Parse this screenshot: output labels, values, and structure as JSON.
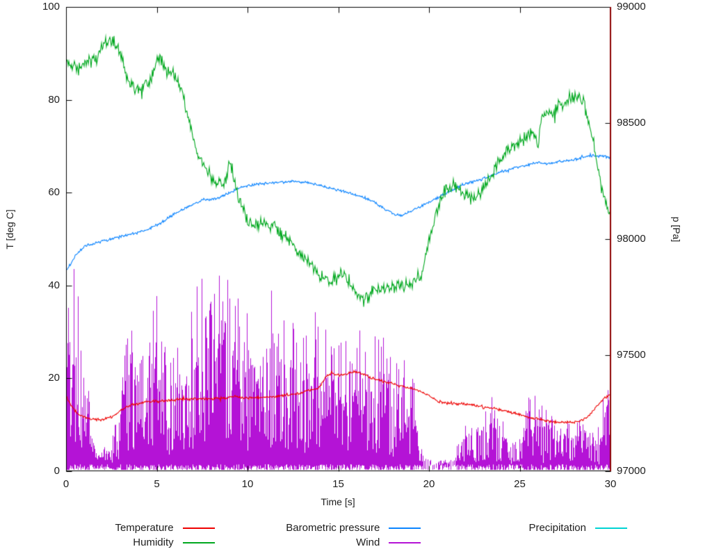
{
  "figure": {
    "background": "#ffffff",
    "border_color": "#000000",
    "right_border_color": "#8b0000",
    "text_color": "#202020"
  },
  "chart_data": {
    "type": "line",
    "title": "",
    "xlabel": "Time [s]",
    "ylabel_left": "T [deg C]",
    "ylabel_right": "p [Pa]",
    "x_range": [
      0,
      30
    ],
    "y_left_range": [
      0,
      100
    ],
    "y_right_range": [
      97000,
      99000
    ],
    "x_ticks": [
      0,
      5,
      10,
      15,
      20,
      25,
      30
    ],
    "y_left_ticks": [
      0,
      20,
      40,
      60,
      80,
      100
    ],
    "y_right_ticks": [
      97000,
      97500,
      98000,
      98500,
      99000
    ],
    "grid": false,
    "legend_position": "bottom",
    "series": [
      {
        "name": "Temperature",
        "color": "#ee0000",
        "axis": "left",
        "style": "noisy-line",
        "noise": 0.35,
        "points": [
          [
            0,
            16.2
          ],
          [
            0.3,
            14
          ],
          [
            0.7,
            12.2
          ],
          [
            1,
            11.6
          ],
          [
            1.5,
            11.2
          ],
          [
            2,
            11.1
          ],
          [
            2.5,
            11.6
          ],
          [
            3,
            13
          ],
          [
            3.5,
            14.2
          ],
          [
            4,
            14.6
          ],
          [
            4.5,
            15
          ],
          [
            5,
            15.1
          ],
          [
            5.5,
            15.1
          ],
          [
            6,
            15.4
          ],
          [
            6.5,
            15.5
          ],
          [
            7,
            15.5
          ],
          [
            7.5,
            15.6
          ],
          [
            8,
            15.6
          ],
          [
            8.5,
            15.7
          ],
          [
            9,
            16
          ],
          [
            9.5,
            16
          ],
          [
            10,
            15.6
          ],
          [
            10.5,
            15.9
          ],
          [
            11,
            16
          ],
          [
            11.5,
            16.1
          ],
          [
            12,
            16.4
          ],
          [
            12.5,
            16.5
          ],
          [
            13,
            17
          ],
          [
            13.5,
            17.5
          ],
          [
            14,
            18.2
          ],
          [
            14.3,
            20.4
          ],
          [
            14.6,
            21
          ],
          [
            15,
            20.6
          ],
          [
            15.5,
            21
          ],
          [
            16,
            21.4
          ],
          [
            16.4,
            21
          ],
          [
            16.8,
            20.2
          ],
          [
            17.2,
            19.6
          ],
          [
            17.6,
            19.2
          ],
          [
            18,
            18.8
          ],
          [
            18.5,
            18.3
          ],
          [
            19,
            17.8
          ],
          [
            19.5,
            17.3
          ],
          [
            20,
            16.2
          ],
          [
            20.5,
            15.1
          ],
          [
            21,
            14.6
          ],
          [
            21.5,
            14.5
          ],
          [
            22,
            14.5
          ],
          [
            22.5,
            14.2
          ],
          [
            23,
            13.7
          ],
          [
            23.5,
            13.6
          ],
          [
            24,
            13.2
          ],
          [
            24.5,
            12.7
          ],
          [
            25,
            12.2
          ],
          [
            25.5,
            11.6
          ],
          [
            26,
            11.2
          ],
          [
            26.5,
            10.8
          ],
          [
            27,
            10.6
          ],
          [
            27.5,
            10.5
          ],
          [
            28,
            10.6
          ],
          [
            28.5,
            11
          ],
          [
            29,
            12.8
          ],
          [
            29.5,
            15.2
          ],
          [
            30,
            16.6
          ]
        ]
      },
      {
        "name": "Humidity",
        "color": "#00a81e",
        "axis": "left",
        "style": "noisy-line",
        "noise": 1.7,
        "points": [
          [
            0,
            88
          ],
          [
            0.4,
            87.2
          ],
          [
            0.8,
            87.6
          ],
          [
            1.2,
            88.2
          ],
          [
            1.6,
            88.5
          ],
          [
            2,
            91.5
          ],
          [
            2.3,
            93
          ],
          [
            2.6,
            92.5
          ],
          [
            3,
            89.5
          ],
          [
            3.4,
            84.5
          ],
          [
            3.8,
            82
          ],
          [
            4.2,
            82.5
          ],
          [
            4.6,
            84
          ],
          [
            5,
            88.5
          ],
          [
            5.3,
            88
          ],
          [
            5.6,
            86.5
          ],
          [
            6,
            85
          ],
          [
            6.4,
            82
          ],
          [
            6.8,
            75
          ],
          [
            7.2,
            68.5
          ],
          [
            7.6,
            65.5
          ],
          [
            8,
            63.5
          ],
          [
            8.4,
            62
          ],
          [
            8.8,
            62.5
          ],
          [
            9,
            66.5
          ],
          [
            9.2,
            64
          ],
          [
            9.5,
            58.5
          ],
          [
            10,
            54
          ],
          [
            10.4,
            53
          ],
          [
            10.8,
            53.5
          ],
          [
            11.2,
            52.5
          ],
          [
            11.6,
            52
          ],
          [
            12,
            50.5
          ],
          [
            12.4,
            49.5
          ],
          [
            12.8,
            47
          ],
          [
            13.2,
            45.5
          ],
          [
            13.6,
            44
          ],
          [
            14,
            42
          ],
          [
            14.4,
            41
          ],
          [
            14.8,
            42
          ],
          [
            15.2,
            43
          ],
          [
            15.6,
            41
          ],
          [
            16,
            38
          ],
          [
            16.4,
            37
          ],
          [
            16.8,
            38.5
          ],
          [
            17.2,
            39.5
          ],
          [
            17.6,
            39
          ],
          [
            18,
            39.5
          ],
          [
            18.4,
            40
          ],
          [
            18.8,
            40
          ],
          [
            19.2,
            41
          ],
          [
            19.6,
            42.5
          ],
          [
            20,
            50
          ],
          [
            20.4,
            56
          ],
          [
            20.8,
            60
          ],
          [
            21.2,
            61.5
          ],
          [
            21.6,
            61
          ],
          [
            22,
            59.5
          ],
          [
            22.4,
            58.5
          ],
          [
            22.8,
            60
          ],
          [
            23.2,
            62.5
          ],
          [
            23.6,
            64.5
          ],
          [
            24,
            67.5
          ],
          [
            24.4,
            69.5
          ],
          [
            24.8,
            70.5
          ],
          [
            25.2,
            71.5
          ],
          [
            25.6,
            73
          ],
          [
            26,
            70.5
          ],
          [
            26.2,
            76
          ],
          [
            26.6,
            77
          ],
          [
            27,
            78
          ],
          [
            27.4,
            79.5
          ],
          [
            27.8,
            80.5
          ],
          [
            28.2,
            81
          ],
          [
            28.5,
            79.5
          ],
          [
            28.8,
            75
          ],
          [
            29.1,
            70
          ],
          [
            29.4,
            63
          ],
          [
            29.7,
            58
          ],
          [
            30,
            55.5
          ]
        ]
      },
      {
        "name": "Barometric pressure",
        "color": "#0a84ff",
        "axis": "right",
        "style": "noisy-line",
        "noise": 7,
        "points": [
          [
            0,
            97860
          ],
          [
            0.5,
            97925
          ],
          [
            1,
            97970
          ],
          [
            1.5,
            97980
          ],
          [
            2,
            97990
          ],
          [
            2.5,
            98000
          ],
          [
            3,
            98010
          ],
          [
            3.5,
            98020
          ],
          [
            4,
            98030
          ],
          [
            4.5,
            98040
          ],
          [
            5,
            98060
          ],
          [
            5.5,
            98085
          ],
          [
            6,
            98110
          ],
          [
            6.5,
            98130
          ],
          [
            7,
            98150
          ],
          [
            7.5,
            98168
          ],
          [
            8,
            98170
          ],
          [
            8.5,
            98180
          ],
          [
            9,
            98200
          ],
          [
            9.5,
            98218
          ],
          [
            10,
            98230
          ],
          [
            10.5,
            98238
          ],
          [
            11,
            98240
          ],
          [
            12,
            98244
          ],
          [
            12.5,
            98250
          ],
          [
            13,
            98245
          ],
          [
            13.5,
            98240
          ],
          [
            14,
            98232
          ],
          [
            15,
            98210
          ],
          [
            16,
            98190
          ],
          [
            17,
            98160
          ],
          [
            17.5,
            98132
          ],
          [
            18,
            98110
          ],
          [
            18.4,
            98100
          ],
          [
            19,
            98118
          ],
          [
            20,
            98160
          ],
          [
            21,
            98200
          ],
          [
            22,
            98238
          ],
          [
            23,
            98260
          ],
          [
            24,
            98290
          ],
          [
            25,
            98312
          ],
          [
            26,
            98330
          ],
          [
            26.5,
            98322
          ],
          [
            27,
            98332
          ],
          [
            28,
            98342
          ],
          [
            29,
            98360
          ],
          [
            29.5,
            98360
          ],
          [
            30,
            98350
          ]
        ]
      },
      {
        "name": "Wind",
        "color": "#b413d6",
        "axis": "left",
        "style": "impulses",
        "baseline": 0.3,
        "envelope": [
          [
            0,
            32
          ],
          [
            0.3,
            48
          ],
          [
            0.6,
            40
          ],
          [
            1,
            30
          ],
          [
            1.3,
            14
          ],
          [
            1.7,
            8
          ],
          [
            2.1,
            7
          ],
          [
            2.5,
            8
          ],
          [
            2.8,
            12
          ],
          [
            3.2,
            26
          ],
          [
            3.6,
            35
          ],
          [
            4,
            30
          ],
          [
            4.4,
            26
          ],
          [
            4.8,
            45
          ],
          [
            5.2,
            32
          ],
          [
            5.6,
            28
          ],
          [
            6,
            30
          ],
          [
            6.5,
            32
          ],
          [
            7,
            38
          ],
          [
            7.5,
            44
          ],
          [
            8,
            40
          ],
          [
            8.5,
            48
          ],
          [
            9,
            46
          ],
          [
            9.5,
            38
          ],
          [
            10,
            36
          ],
          [
            10.5,
            43
          ],
          [
            11,
            38
          ],
          [
            11.5,
            41
          ],
          [
            12,
            37
          ],
          [
            12.5,
            34
          ],
          [
            13,
            31
          ],
          [
            13.5,
            37
          ],
          [
            14,
            33
          ],
          [
            14.5,
            31
          ],
          [
            15,
            29
          ],
          [
            15.5,
            31
          ],
          [
            16,
            35
          ],
          [
            16.5,
            31
          ],
          [
            17,
            29
          ],
          [
            17.5,
            31
          ],
          [
            18,
            26
          ],
          [
            18.5,
            29
          ],
          [
            19,
            23
          ],
          [
            19.4,
            15
          ],
          [
            19.8,
            4
          ],
          [
            20.3,
            2
          ],
          [
            20.8,
            2.5
          ],
          [
            21.3,
            4
          ],
          [
            21.8,
            10
          ],
          [
            22.3,
            16
          ],
          [
            22.8,
            13
          ],
          [
            23.3,
            18
          ],
          [
            23.8,
            12
          ],
          [
            24.3,
            10
          ],
          [
            24.8,
            9
          ],
          [
            25.3,
            14
          ],
          [
            25.6,
            23
          ],
          [
            26,
            13
          ],
          [
            26.5,
            16
          ],
          [
            27,
            11
          ],
          [
            27.5,
            13
          ],
          [
            28,
            11
          ],
          [
            28.5,
            13
          ],
          [
            29,
            9
          ],
          [
            29.4,
            11
          ],
          [
            29.7,
            20
          ],
          [
            30,
            30
          ]
        ]
      },
      {
        "name": "Precipitation",
        "color": "#00d3d3",
        "axis": "left",
        "style": "noisy-line",
        "noise": 0,
        "points": []
      }
    ],
    "annotations": [
      {
        "type": "vline",
        "x": 30,
        "color": "#8b0000",
        "width": 2
      }
    ]
  },
  "legend": {
    "rows": [
      [
        "Temperature",
        "Barometric pressure",
        "Precipitation"
      ],
      [
        "Humidity",
        "Wind"
      ]
    ]
  }
}
